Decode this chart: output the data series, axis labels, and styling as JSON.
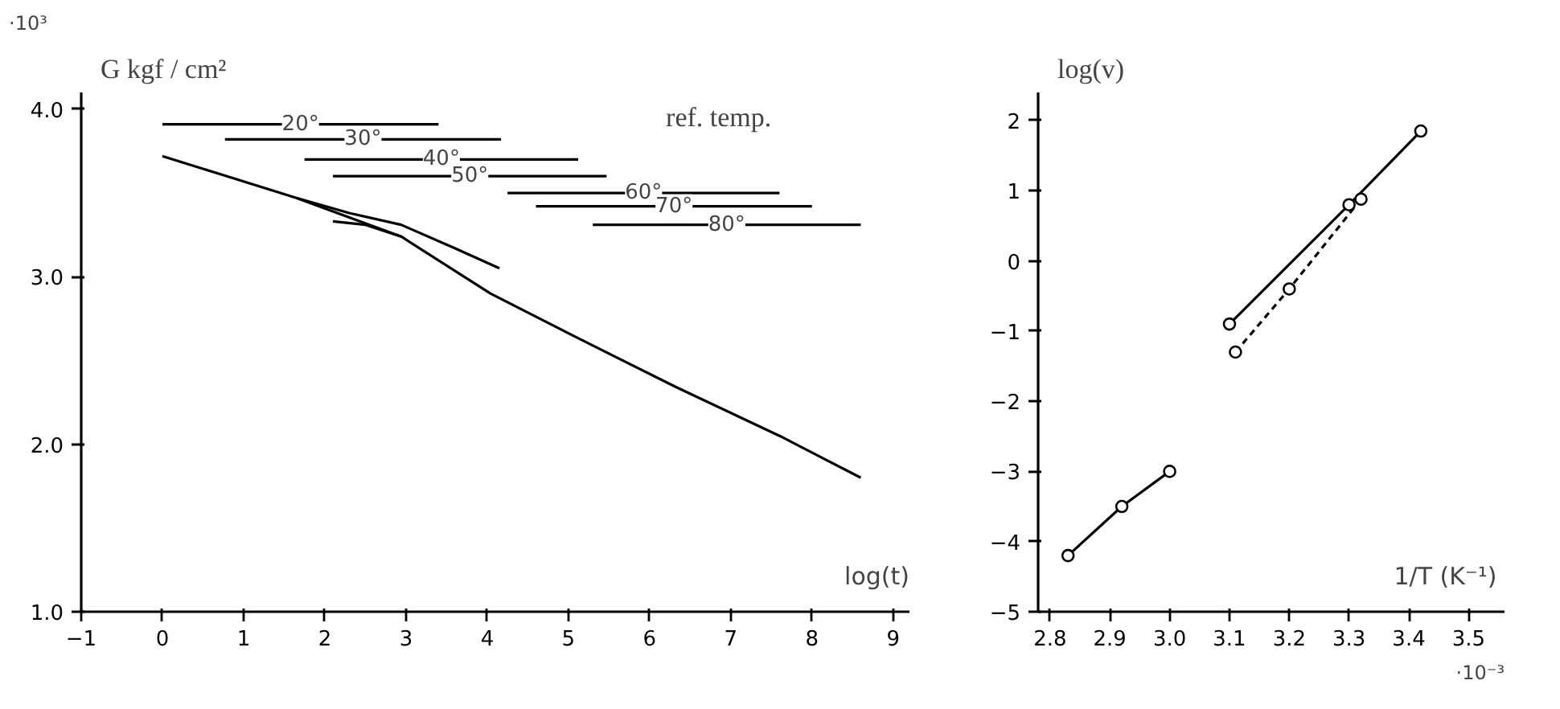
{
  "chart_data": [
    {
      "type": "line",
      "xlabel": "log(t)",
      "ylabel": "G  kgf / cm²",
      "annotations": [
        "·10³",
        "ref. temp."
      ],
      "xlim": [
        -1,
        9.2
      ],
      "ylim": [
        1.0,
        4.1
      ],
      "xticks": [
        -1,
        0,
        1,
        2,
        3,
        4,
        5,
        6,
        7,
        8,
        9
      ],
      "yticks": [
        {
          "value": 1,
          "label": "1.0"
        },
        {
          "value": 2,
          "label": "2.0"
        },
        {
          "value": 3,
          "label": "3.0"
        },
        {
          "value": 4,
          "label": "4.0"
        }
      ],
      "grid": false,
      "series": [
        {
          "color": "#000000",
          "x": [
            0,
            0.66,
            1.65,
            2.94,
            4.04,
            5.05,
            6.33,
            7.6,
            8.6
          ],
          "values": [
            3.72,
            3.62,
            3.47,
            3.24,
            2.9,
            2.65,
            2.34,
            2.05,
            1.8
          ]
        },
        {
          "color": "#000000",
          "x": [
            1.65,
            2.3,
            2.94,
            3.6,
            4.15
          ],
          "values": [
            3.47,
            3.38,
            3.31,
            3.17,
            3.05
          ]
        },
        {
          "color": "#000000",
          "x": [
            2.1,
            2.5,
            2.94
          ],
          "values": [
            3.33,
            3.31,
            3.24
          ]
        },
        {
          "name": "20°",
          "color": "#000000",
          "x": [
            0,
            3.4
          ],
          "values": [
            3.91,
            3.91
          ]
        },
        {
          "name": "30°",
          "color": "#000000",
          "x": [
            0.77,
            4.17
          ],
          "values": [
            3.82,
            3.82
          ]
        },
        {
          "name": "40°",
          "color": "#000000",
          "x": [
            1.75,
            5.12
          ],
          "values": [
            3.7,
            3.7
          ]
        },
        {
          "name": "50°",
          "color": "#000000",
          "x": [
            2.1,
            5.47
          ],
          "values": [
            3.6,
            3.6
          ]
        },
        {
          "name": "60°",
          "color": "#000000",
          "x": [
            4.25,
            7.6
          ],
          "values": [
            3.5,
            3.5
          ]
        },
        {
          "name": "70°",
          "color": "#000000",
          "x": [
            4.6,
            8.0
          ],
          "values": [
            3.42,
            3.42
          ]
        },
        {
          "name": "80°",
          "color": "#000000",
          "x": [
            5.3,
            8.6
          ],
          "values": [
            3.31,
            3.31
          ]
        }
      ]
    },
    {
      "type": "line",
      "xlabel": "1/T  (K⁻¹)",
      "ylabel": "log(v)",
      "annotations": [
        "·10⁻³"
      ],
      "xlim": [
        2.78,
        3.56
      ],
      "ylim": [
        -5,
        2.4
      ],
      "xticks": [
        2.8,
        2.9,
        {
          "value": 3.0,
          "label": "3.0"
        },
        3.1,
        3.2,
        3.3,
        3.4,
        3.5
      ],
      "yticks": [
        -5,
        -4,
        -3,
        -2,
        -1,
        0,
        1,
        2
      ],
      "grid": false,
      "marker": "circle",
      "series": [
        {
          "color": "#000000",
          "x": [
            2.83,
            2.92,
            3.0
          ],
          "values": [
            -4.2,
            -3.5,
            -3.0
          ]
        },
        {
          "color": "#000000",
          "x": [
            3.1,
            3.3,
            3.42
          ],
          "values": [
            -0.9,
            0.8,
            1.85
          ]
        },
        {
          "color": "#000000",
          "line_style": "dashed",
          "x": [
            3.11,
            3.2,
            3.32
          ],
          "values": [
            -1.3,
            -0.4,
            0.88
          ]
        }
      ]
    }
  ]
}
